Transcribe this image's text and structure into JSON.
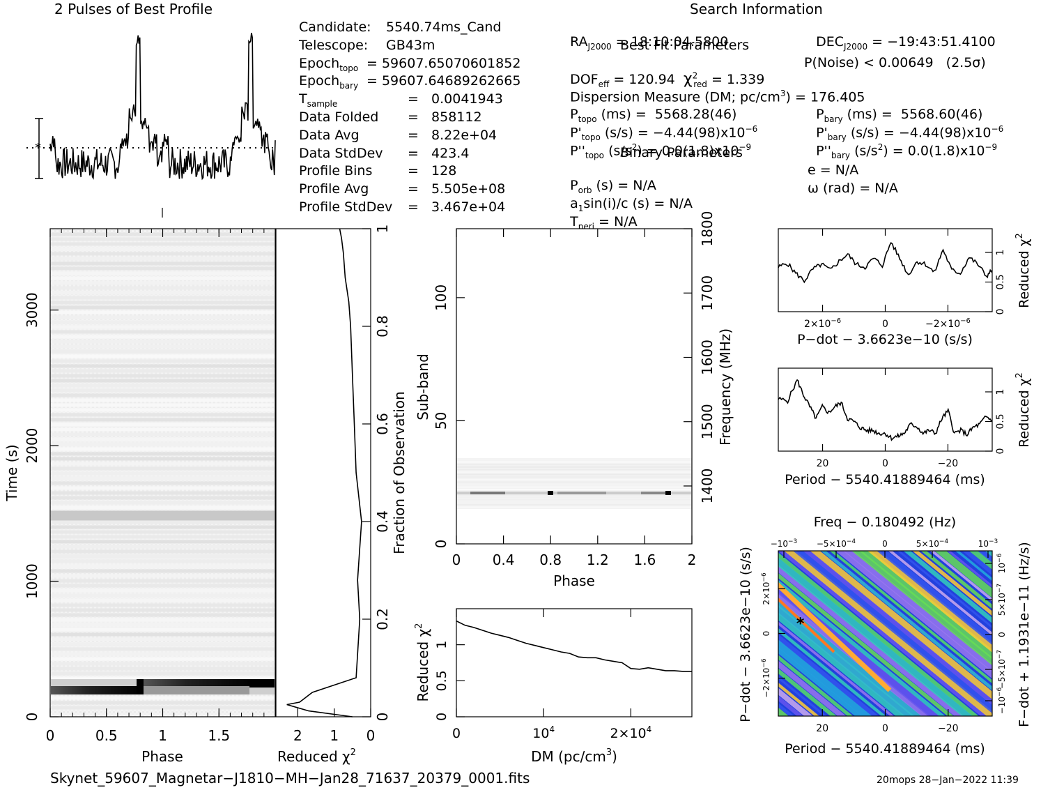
{
  "header": {
    "profile_title": "2 Pulses of Best Profile",
    "search_title": "Search Information",
    "fit_title": "Best Fit Parameters",
    "binary_title": "Binary Parameters"
  },
  "info_left": [
    {
      "label": "Candidate:",
      "value": "5540.74ms_Cand"
    },
    {
      "label": "Telescope:",
      "value": "GB43m"
    },
    {
      "label": "Epoch",
      "sub": "topo",
      "value": "= 59607.65070601852"
    },
    {
      "label": "Epoch",
      "sub": "bary",
      "value": "= 59607.64689262665"
    },
    {
      "label": "T",
      "sub": "sample",
      "value": "=   0.0041943"
    },
    {
      "label": "Data Folded",
      "value": "=   858112"
    },
    {
      "label": "Data Avg",
      "value": "=   8.22e+04"
    },
    {
      "label": "Data StdDev",
      "value": "=   423.4"
    },
    {
      "label": "Profile Bins",
      "value": "=   128"
    },
    {
      "label": "Profile Avg",
      "value": "=   5.505e+08"
    },
    {
      "label": "Profile StdDev",
      "value": "=   3.467e+04"
    }
  ],
  "search": {
    "ra": "RA",
    "ra_sub": "J2000",
    "ra_value": "= 18:10:04.5800",
    "dec": "DEC",
    "dec_sub": "J2000",
    "dec_value": "= −19:43:51.4100"
  },
  "fit": {
    "dof": "DOF",
    "dof_sub": "eff",
    "dof_value": "= 120.94",
    "chi": "χ",
    "chi_sup": "2",
    "chi_sub": "red",
    "chi_value": "= 1.339",
    "pnoise": "P(Noise) < 0.00649   (2.5σ)",
    "dm_line": "Dispersion Measure (DM; pc/cm",
    "dm_sup": "3",
    "dm_value": ") = 176.405",
    "ptopo": "P",
    "ptopo_sub": "topo",
    "ptopo_value": "(ms) =  5568.28(46)",
    "pbary": "P",
    "pbary_sub": "bary",
    "pbary_value": "(ms) =  5568.60(46)",
    "pdtopo": "P'",
    "pdtopo_sub": "topo",
    "pdtopo_value": "(s/s) = −4.44(98)x10",
    "pdtopo_sup": "−6",
    "pdbary": "P'",
    "pdbary_sub": "bary",
    "pdbary_value": "(s/s) = −4.44(98)x10",
    "pdbary_sup": "−6",
    "pddtopo": "P''",
    "pddtopo_sub": "topo",
    "pddtopo_value": "(s/s",
    "pddtopo_sup2": "2",
    "pddtopo_value2": ") = 0.0(1.8)x10",
    "pddtopo_sup": "−9",
    "pddbary": "P''",
    "pddbary_sub": "bary",
    "pddbary_value": "(s/s",
    "pddbary_sup2": "2",
    "pddbary_value2": ") = 0.0(1.8)x10",
    "pddbary_sup": "−9"
  },
  "binary": {
    "porb": "P",
    "porb_sub": "orb",
    "porb_value": "(s) = N/A",
    "asini": "a",
    "asini_sub": "1",
    "asini_value": "sin(i)/c (s) = N/A",
    "tperi": "T",
    "tperi_sub": "peri",
    "tperi_value": "= N/A",
    "e": "e = N/A",
    "omega": "ω (rad) = N/A"
  },
  "footer": {
    "filename": "Skynet_59607_Magnetar−J1810−MH−Jan28_71637_20379_0001.fits",
    "stamp": "20mops 28−Jan−2022 11:39"
  },
  "chart_data": [
    {
      "type": "line",
      "id": "profile",
      "title": "2 Pulses of Best Profile",
      "x_range": [
        0,
        2
      ],
      "y_range": [
        -1,
        4
      ]
    },
    {
      "type": "heatmap",
      "id": "time-phase",
      "xlabel": "Phase",
      "ylabel": "Time (s)",
      "xlim": [
        0,
        2
      ],
      "ylim": [
        0,
        3600
      ],
      "xticks": [
        "0",
        "0.5",
        "1",
        "1.5"
      ],
      "yticks": [
        "0",
        "1000",
        "2000",
        "3000"
      ]
    },
    {
      "type": "line",
      "id": "time-chi2",
      "xlabel": "Reduced χ",
      "xlabel_sup": "2",
      "ylabel": "Fraction of Observation",
      "xlim": [
        2.6,
        0
      ],
      "ylim": [
        0,
        1
      ],
      "xticks": [
        "2",
        "1",
        "0"
      ],
      "yticks": [
        "0",
        "0.2",
        "0.4",
        "0.6",
        "0.8",
        "1"
      ],
      "x": [
        0.5,
        1.7,
        2.3,
        1.95,
        1.6,
        0.4,
        0.3,
        0.36,
        0.25,
        0.4,
        0.45,
        0.5,
        0.55,
        0.6,
        0.7,
        0.75,
        0.8,
        0.85
      ],
      "y": [
        0.0,
        0.012,
        0.025,
        0.03,
        0.05,
        0.08,
        0.2,
        0.28,
        0.4,
        0.5,
        0.6,
        0.7,
        0.8,
        0.85,
        0.9,
        0.95,
        0.98,
        1.0
      ]
    },
    {
      "type": "heatmap",
      "id": "subband-phase",
      "xlabel": "Phase",
      "ylabel": "Sub-band",
      "y2label": "Frequency (MHz)",
      "xlim": [
        0,
        2
      ],
      "ylim": [
        0,
        128
      ],
      "y2lim": [
        1310,
        1800
      ],
      "xticks": [
        "0",
        "0.4",
        "0.8",
        "1.2",
        "1.6",
        "2"
      ],
      "yticks": [
        "0",
        "50",
        "100"
      ],
      "y2ticks": [
        "1400",
        "1500",
        "1600",
        "1700",
        "1800"
      ]
    },
    {
      "type": "line",
      "id": "dm-chi2",
      "xlabel": "DM (pc/cm",
      "xlabel_sup": "3",
      "xlabel_end": ")",
      "ylabel": "Reduced χ",
      "ylabel_sup": "2",
      "xlim": [
        0,
        27000
      ],
      "ylim": [
        0,
        1.5
      ],
      "xticks": [
        "0",
        "10",
        "2×10"
      ],
      "xticks_sup": [
        "",
        "4",
        "4"
      ],
      "yticks": [
        "0",
        "0.5",
        "1"
      ],
      "x": [
        0,
        1000,
        2000,
        3000,
        4000,
        5000,
        6000,
        7000,
        8000,
        9000,
        10000,
        11000,
        12000,
        13000,
        14000,
        15000,
        16000,
        17000,
        18000,
        19000,
        20000,
        21000,
        22000,
        23000,
        24000,
        25000,
        26000,
        27000
      ],
      "y": [
        1.33,
        1.27,
        1.24,
        1.2,
        1.16,
        1.13,
        1.1,
        1.06,
        1.02,
        0.99,
        0.96,
        0.93,
        0.9,
        0.88,
        0.83,
        0.82,
        0.82,
        0.79,
        0.77,
        0.75,
        0.67,
        0.66,
        0.68,
        0.66,
        0.64,
        0.64,
        0.63,
        0.63
      ]
    },
    {
      "type": "line",
      "id": "pdot-chi2",
      "xlabel": "P−dot − 3.6623e−10 (s/s)",
      "ylabel": "Reduced χ",
      "ylabel_sup": "2",
      "xlim": [
        3.7e-06,
        -3.7e-06
      ],
      "ylim": [
        0,
        1.4
      ],
      "xticks": [
        "2×10",
        "0",
        "−2×10"
      ],
      "xticks_sup": [
        "−6",
        "",
        "−6"
      ],
      "yticks": [
        "0",
        "0.5",
        "1"
      ],
      "x": [
        3.7e-06,
        3.4e-06,
        3.1e-06,
        2.8e-06,
        2.5e-06,
        2.2e-06,
        1.9e-06,
        1.6e-06,
        1.3e-06,
        1e-06,
        7e-07,
        4e-07,
        1e-07,
        -2e-07,
        -5e-07,
        -8e-07,
        -1.1e-06,
        -1.4e-06,
        -1.7e-06,
        -2e-06,
        -2.3e-06,
        -2.6e-06,
        -2.9e-06,
        -3.2e-06,
        -3.5e-06,
        -3.7e-06
      ],
      "y": [
        0.75,
        0.82,
        0.65,
        0.52,
        0.72,
        0.8,
        0.7,
        0.85,
        0.97,
        0.8,
        0.75,
        0.9,
        0.78,
        1.18,
        0.9,
        0.62,
        0.85,
        0.8,
        0.66,
        1.05,
        0.7,
        0.65,
        0.92,
        0.8,
        0.6,
        0.7
      ]
    },
    {
      "type": "line",
      "id": "period-chi2",
      "xlabel": "Period − 5540.41889464 (ms)",
      "ylabel": "Reduced χ",
      "ylabel_sup": "2",
      "xlim": [
        34,
        -34
      ],
      "ylim": [
        0,
        1.4
      ],
      "xticks": [
        "20",
        "0",
        "−20"
      ],
      "yticks": [
        "0",
        "0.5",
        "1"
      ],
      "x": [
        34,
        31,
        28,
        26,
        24,
        22,
        20,
        18,
        16,
        14,
        12,
        10,
        8,
        6,
        4,
        2,
        0,
        -2,
        -4,
        -6,
        -8,
        -10,
        -12,
        -14,
        -16,
        -18,
        -20,
        -22,
        -24,
        -26,
        -28,
        -30,
        -32,
        -34
      ],
      "y": [
        0.88,
        0.85,
        1.2,
        0.95,
        0.75,
        0.55,
        0.75,
        0.65,
        0.75,
        0.82,
        0.55,
        0.5,
        0.4,
        0.35,
        0.35,
        0.3,
        0.3,
        0.22,
        0.25,
        0.3,
        0.45,
        0.42,
        0.3,
        0.35,
        0.3,
        0.55,
        0.68,
        0.3,
        0.35,
        0.28,
        0.4,
        0.45,
        0.58,
        0.52
      ]
    },
    {
      "type": "heatmap",
      "id": "period-pdot",
      "title": "Freq − 0.180492 (Hz)",
      "xlabel": "Period − 5540.41889464 (ms)",
      "ylabel": "P−dot − 3.6623e−10 (s/s)",
      "y2label": "F−dot + 1.1931e−11 (Hz/s)",
      "xlim": [
        34,
        -34
      ],
      "ylim": [
        3.7e-06,
        -3.7e-06
      ],
      "xticks": [
        "20",
        "0",
        "−20"
      ],
      "top_ticks": [
        "−10",
        "−5×10",
        "0",
        "5×10",
        "10"
      ],
      "top_ticks_sup": [
        "−3",
        "−4",
        "",
        "−4",
        "−3"
      ],
      "yticks": [
        "2×10",
        "0",
        "−2×10"
      ],
      "yticks_sup": [
        "−6",
        "",
        "−6"
      ],
      "y2ticks": [
        "−10",
        "−5×10",
        "0",
        "5×10",
        "10"
      ],
      "y2ticks_sup": [
        "−6",
        "−7",
        "",
        "−7",
        "−6"
      ],
      "best_point": {
        "x": 27,
        "y": 5e-07
      }
    }
  ]
}
